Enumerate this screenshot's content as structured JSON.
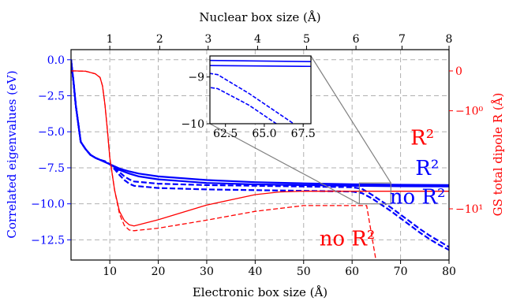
{
  "colors": {
    "left": "#0000ff",
    "right": "#ff0000",
    "frame": "#000000",
    "grid": "#b0b0b0",
    "connector": "#808080"
  },
  "chart_data": {
    "type": "line",
    "xlabel": "Electronic box size (Å)",
    "top_xlabel": "Nuclear box size (Å)",
    "ylabel": "Correlated eigenvalues (eV)",
    "y2label": "GS total dipole R (Å)",
    "xlim": [
      2,
      80
    ],
    "ylim": [
      -13.9,
      0.7
    ],
    "xticks": [
      10,
      20,
      30,
      40,
      50,
      60,
      70,
      80
    ],
    "yticks": [
      0.0,
      -2.5,
      -5.0,
      -7.5,
      -10.0,
      -12.5
    ],
    "ytick_labels": [
      "0.0",
      "−2.5",
      "−5.0",
      "−7.5",
      "−10.0",
      "−12.5"
    ],
    "top_ticks": [
      {
        "label": "1",
        "x": 10
      },
      {
        "label": "2",
        "x": 20.3
      },
      {
        "label": "3",
        "x": 30.3
      },
      {
        "label": "4",
        "x": 40.5
      },
      {
        "label": "5",
        "x": 50.6
      },
      {
        "label": "6",
        "x": 60.8
      },
      {
        "label": "7",
        "x": 70.3
      },
      {
        "label": "8",
        "x": 80
      }
    ],
    "right_axis": {
      "scale": "symlog",
      "ticks": [
        {
          "label": "0",
          "value": 0
        },
        {
          "label": "−10⁰",
          "value": -1
        },
        {
          "label": "−10¹",
          "value": -10
        }
      ]
    },
    "grid": true,
    "annotations": [
      {
        "text": "R²",
        "color": "#ff0000",
        "x": 74.5,
        "y": -5.9
      },
      {
        "text": "R²",
        "color": "#0000ff",
        "x": 75.5,
        "y": -8.0
      },
      {
        "text": "no R²",
        "color": "#0000ff",
        "x": 73.5,
        "y": -10.0
      },
      {
        "text": "no R²",
        "color": "#ff0000",
        "x": 59.0,
        "y": -12.9
      }
    ],
    "series": [
      {
        "axis": "left",
        "color": "#0000ff",
        "style": "solid",
        "width": 2.2,
        "x": [
          2,
          2.5,
          3,
          4,
          5,
          6,
          7,
          8,
          9,
          10,
          11,
          12,
          14,
          16,
          20,
          30,
          40,
          50,
          60,
          70,
          80
        ],
        "y": [
          0.0,
          -1.5,
          -3.2,
          -5.7,
          -6.2,
          -6.6,
          -6.8,
          -6.95,
          -7.1,
          -7.25,
          -7.45,
          -7.65,
          -7.9,
          -8.1,
          -8.3,
          -8.55,
          -8.65,
          -8.7,
          -8.75,
          -8.78,
          -8.8
        ]
      },
      {
        "axis": "left",
        "color": "#0000ff",
        "style": "solid",
        "width": 2.2,
        "x": [
          2,
          2.5,
          3,
          4,
          5,
          6,
          7,
          8,
          9,
          10,
          11,
          12,
          14,
          16,
          20,
          30,
          40,
          50,
          60,
          70,
          80
        ],
        "y": [
          0.0,
          -1.5,
          -3.2,
          -5.7,
          -6.2,
          -6.6,
          -6.8,
          -6.95,
          -7.1,
          -7.25,
          -7.4,
          -7.55,
          -7.75,
          -7.9,
          -8.1,
          -8.35,
          -8.5,
          -8.58,
          -8.64,
          -8.68,
          -8.7
        ]
      },
      {
        "axis": "left",
        "color": "#0000ff",
        "style": "dashed",
        "width": 2.2,
        "x": [
          2,
          2.5,
          3,
          4,
          5,
          6,
          7,
          8,
          9,
          10,
          11,
          12,
          13,
          14,
          15,
          20,
          30,
          40,
          50,
          60,
          62,
          64,
          66,
          68,
          70,
          72,
          74,
          76,
          78,
          80
        ],
        "y": [
          0.0,
          -1.5,
          -3.2,
          -5.7,
          -6.2,
          -6.6,
          -6.8,
          -6.95,
          -7.05,
          -7.25,
          -7.6,
          -8.0,
          -8.35,
          -8.6,
          -8.75,
          -8.9,
          -9.0,
          -9.05,
          -9.1,
          -9.15,
          -9.25,
          -9.6,
          -10.05,
          -10.5,
          -11.0,
          -11.5,
          -12.0,
          -12.45,
          -12.85,
          -13.2
        ]
      },
      {
        "axis": "left",
        "color": "#0000ff",
        "style": "dashed",
        "width": 2.2,
        "x": [
          2,
          2.5,
          3,
          4,
          5,
          6,
          7,
          8,
          9,
          10,
          11,
          12,
          13,
          14,
          15,
          20,
          30,
          40,
          50,
          60,
          62,
          64,
          66,
          68,
          70,
          72,
          74,
          76,
          78,
          80
        ],
        "y": [
          0.0,
          -1.5,
          -3.2,
          -5.7,
          -6.2,
          -6.6,
          -6.8,
          -6.95,
          -7.05,
          -7.25,
          -7.5,
          -7.8,
          -8.1,
          -8.3,
          -8.45,
          -8.6,
          -8.7,
          -8.75,
          -8.8,
          -8.85,
          -8.95,
          -9.35,
          -9.8,
          -10.25,
          -10.75,
          -11.25,
          -11.75,
          -12.2,
          -12.6,
          -13.0
        ]
      },
      {
        "axis": "right",
        "color": "#ff0000",
        "style": "solid",
        "width": 1.3,
        "x": [
          2,
          3,
          5,
          7,
          8,
          8.5,
          9,
          9.5,
          10,
          11,
          12,
          13,
          14,
          15,
          20,
          30,
          40,
          45,
          50,
          60,
          70,
          80
        ],
        "y": [
          0.0,
          0.0,
          -0.005,
          -0.05,
          -0.12,
          -0.3,
          -0.8,
          -1.8,
          -3.5,
          -7.0,
          -10.5,
          -12.5,
          -13.5,
          -13.8,
          -12.3,
          -9.3,
          -7.6,
          -7.2,
          -7.1,
          -7.1,
          -7.1,
          -7.1
        ]
      },
      {
        "axis": "right",
        "color": "#ff0000",
        "style": "dashed",
        "width": 1.3,
        "x": [
          2,
          3,
          5,
          7,
          8,
          8.5,
          9,
          9.5,
          10,
          11,
          12,
          13,
          14,
          15,
          20,
          30,
          40,
          50,
          60,
          63,
          64,
          66,
          70,
          80
        ],
        "y": [
          0.0,
          0.0,
          -0.005,
          -0.05,
          -0.12,
          -0.3,
          -0.8,
          -1.8,
          -3.5,
          -7.0,
          -11.0,
          -13.7,
          -14.9,
          -15.1,
          -14.4,
          -12.4,
          -10.5,
          -9.4,
          -9.4,
          -9.4,
          -16.0,
          -45.0,
          -47.0,
          -52.0
        ]
      }
    ],
    "inset": {
      "xlim": [
        61.5,
        68.0
      ],
      "ylim": [
        -10.0,
        -8.55
      ],
      "xticks": [
        62.5,
        65.0,
        67.5
      ],
      "xtick_labels": [
        "62.5",
        "65.0",
        "67.5"
      ],
      "yticks": [
        -9,
        -10
      ],
      "ytick_labels": [
        "−9",
        "−10"
      ],
      "zoom_region": {
        "x": [
          61.5,
          68.0
        ],
        "y": [
          -10.0,
          -8.55
        ]
      }
    }
  }
}
